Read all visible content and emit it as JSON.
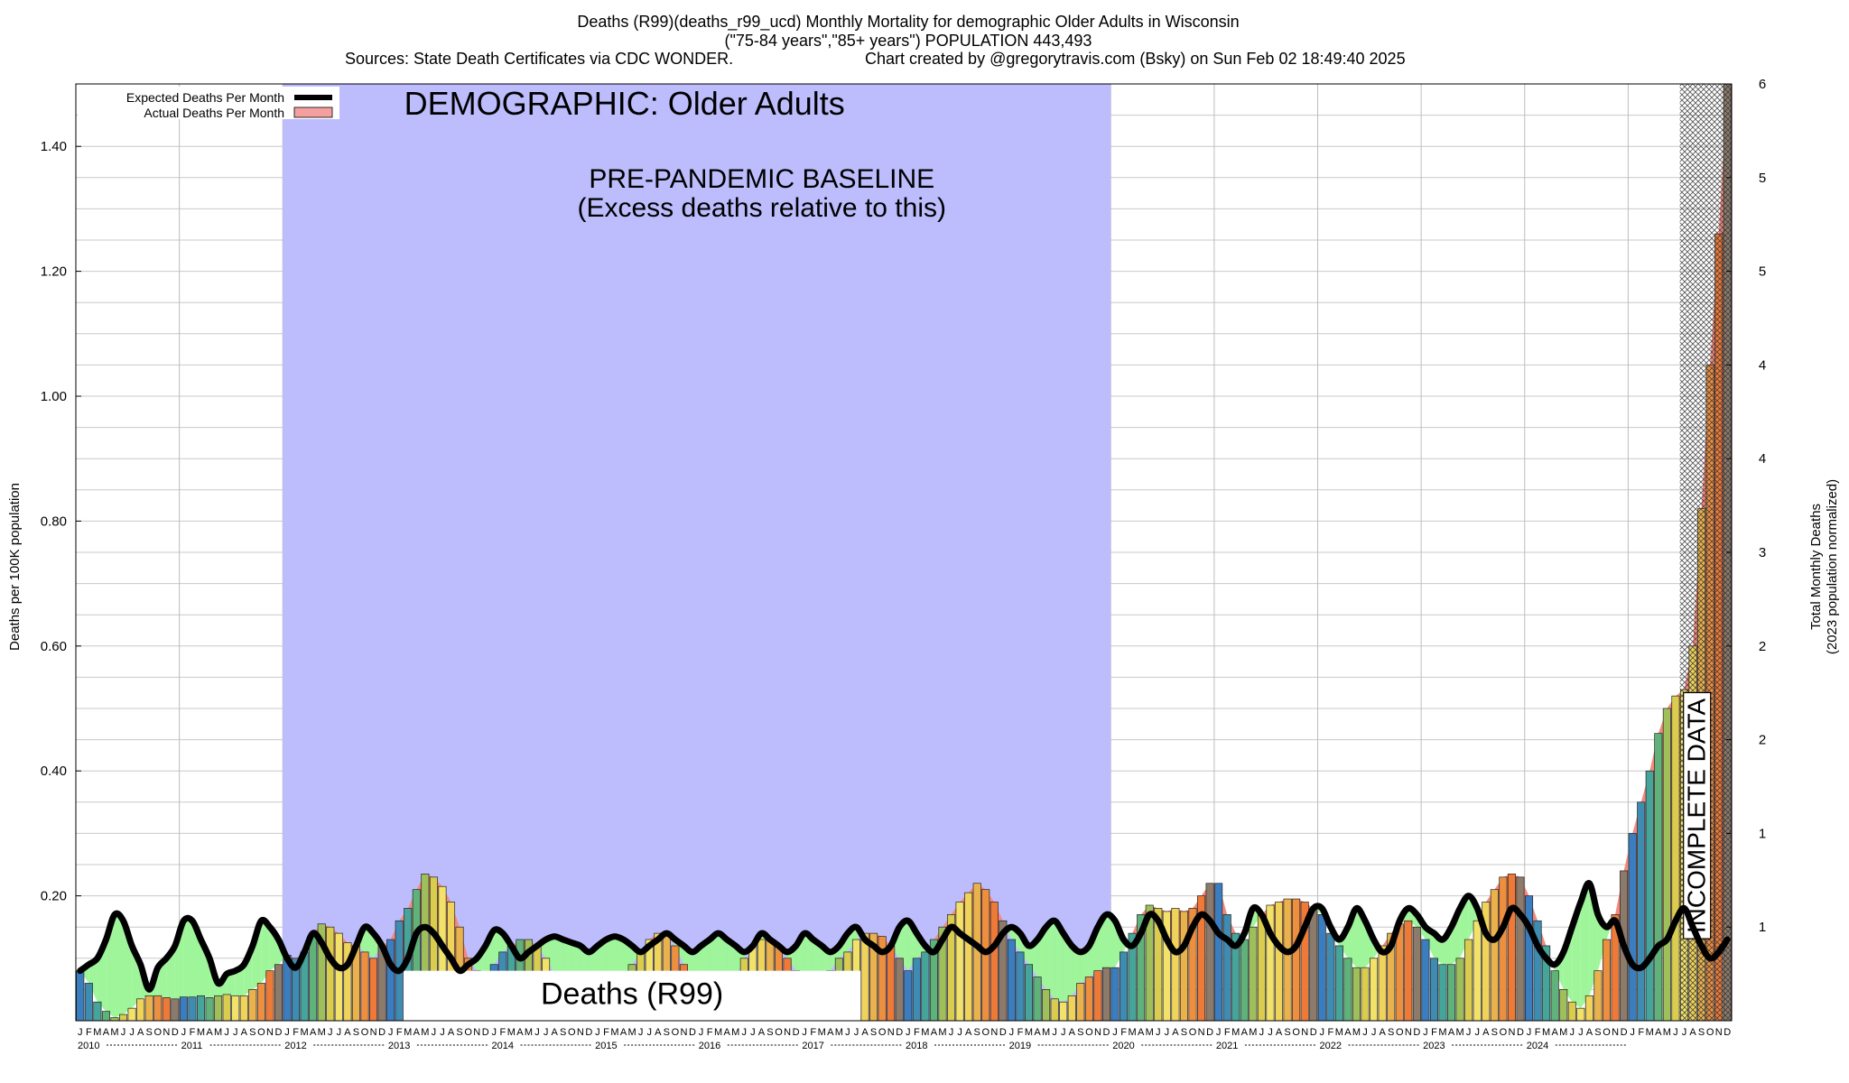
{
  "chart_data": {
    "type": "bar",
    "title": "Deaths (R99)(deaths_r99_ucd) Monthly Mortality for demographic Older Adults in Wisconsin",
    "subtitle": "(\"75-84 years\",\"85+ years\") POPULATION 443,493",
    "source": "Sources: State Death Certificates via CDC WONDER.",
    "credit": "Chart created by @gregorytravis.com (Bsky) on Sun Feb 02 18:49:40 2025",
    "ylabel": "Deaths per 100K population",
    "y2label_line1": "Total Monthly Deaths",
    "y2label_line2": "(2023 population normalized)",
    "ylim": [
      0,
      1.5
    ],
    "yticks": [
      "0.20",
      "0.40",
      "0.60",
      "0.80",
      "1.00",
      "1.20",
      "1.40"
    ],
    "ytick_values": [
      0.2,
      0.4,
      0.6,
      0.8,
      1.0,
      1.2,
      1.4
    ],
    "y2ticks": [
      "1",
      "1",
      "2",
      "2",
      "3",
      "4",
      "4",
      "5",
      "5",
      "6"
    ],
    "y2tick_values": [
      0.15,
      0.3,
      0.45,
      0.6,
      0.75,
      0.9,
      1.05,
      1.2,
      1.35,
      1.5
    ],
    "legend_position": "top-left",
    "legend": [
      "Expected Deaths Per Month",
      "Actual Deaths Per Month"
    ],
    "legend_colors": [
      "#000000",
      "#f4a0a0"
    ],
    "baseline_label": "DEMOGRAPHIC: Older Adults",
    "baseline_note_1": "PRE-PANDEMIC BASELINE",
    "baseline_note_2": "(Excess deaths relative to this)",
    "baseline_period": [
      "2012-01",
      "2019-12"
    ],
    "cause_label": "Deaths (R99)",
    "incomplete_label": "INCOMPLETE DATA",
    "incomplete_period": [
      "2024-07",
      "2024-12"
    ],
    "month_letters": [
      "J",
      "F",
      "M",
      "A",
      "M",
      "J",
      "J",
      "A",
      "S",
      "O",
      "N",
      "D"
    ],
    "years": [
      "2010",
      "2011",
      "2012",
      "2013",
      "2014",
      "2015",
      "2016",
      "2017",
      "2018",
      "2019",
      "2020",
      "2021",
      "2022",
      "2023",
      "2024"
    ],
    "actual": [
      0.08,
      0.06,
      0.03,
      0.015,
      0.005,
      0.01,
      0.02,
      0.035,
      0.04,
      0.04,
      0.037,
      0.035,
      0.038,
      0.038,
      0.04,
      0.037,
      0.04,
      0.042,
      0.04,
      0.04,
      0.05,
      0.06,
      0.08,
      0.09,
      0.105,
      0.1,
      0.11,
      0.14,
      0.155,
      0.15,
      0.14,
      0.125,
      0.12,
      0.11,
      0.1,
      0.12,
      0.13,
      0.16,
      0.18,
      0.21,
      0.235,
      0.23,
      0.215,
      0.19,
      0.15,
      0.1,
      0.08,
      0.07,
      0.09,
      0.11,
      0.12,
      0.13,
      0.13,
      0.12,
      0.1,
      0.075,
      0.05,
      0.03,
      0.02,
      0.02,
      0.02,
      0.025,
      0.035,
      0.06,
      0.09,
      0.11,
      0.13,
      0.14,
      0.14,
      0.12,
      0.09,
      0.06,
      0.03,
      0.03,
      0.035,
      0.05,
      0.07,
      0.1,
      0.12,
      0.13,
      0.13,
      0.12,
      0.1,
      0.08,
      0.045,
      0.045,
      0.05,
      0.08,
      0.1,
      0.11,
      0.13,
      0.14,
      0.14,
      0.135,
      0.12,
      0.1,
      0.08,
      0.1,
      0.11,
      0.13,
      0.15,
      0.17,
      0.19,
      0.205,
      0.22,
      0.21,
      0.19,
      0.16,
      0.13,
      0.11,
      0.09,
      0.07,
      0.05,
      0.035,
      0.03,
      0.04,
      0.06,
      0.07,
      0.08,
      0.085,
      0.085,
      0.11,
      0.14,
      0.17,
      0.185,
      0.18,
      0.175,
      0.18,
      0.175,
      0.18,
      0.2,
      0.22,
      0.22,
      0.17,
      0.14,
      0.13,
      0.15,
      0.17,
      0.185,
      0.19,
      0.195,
      0.195,
      0.19,
      0.18,
      0.17,
      0.14,
      0.12,
      0.1,
      0.085,
      0.085,
      0.1,
      0.12,
      0.14,
      0.155,
      0.16,
      0.15,
      0.13,
      0.1,
      0.09,
      0.09,
      0.1,
      0.13,
      0.16,
      0.19,
      0.21,
      0.23,
      0.235,
      0.23,
      0.2,
      0.16,
      0.12,
      0.08,
      0.05,
      0.03,
      0.02,
      0.04,
      0.08,
      0.13,
      0.17,
      0.24,
      0.3,
      0.35,
      0.4,
      0.46,
      0.5,
      0.52,
      0.53,
      0.6,
      0.82,
      1.05,
      1.26,
      1.5
    ],
    "expected": [
      0.08,
      0.09,
      0.1,
      0.13,
      0.17,
      0.16,
      0.12,
      0.09,
      0.05,
      0.085,
      0.1,
      0.12,
      0.16,
      0.16,
      0.13,
      0.1,
      0.06,
      0.075,
      0.08,
      0.09,
      0.12,
      0.16,
      0.15,
      0.13,
      0.1,
      0.085,
      0.11,
      0.14,
      0.125,
      0.1,
      0.085,
      0.09,
      0.12,
      0.15,
      0.14,
      0.12,
      0.09,
      0.08,
      0.1,
      0.14,
      0.15,
      0.14,
      0.12,
      0.1,
      0.08,
      0.09,
      0.1,
      0.12,
      0.145,
      0.14,
      0.12,
      0.1,
      0.11,
      0.12,
      0.13,
      0.135,
      0.13,
      0.125,
      0.12,
      0.11,
      0.12,
      0.13,
      0.135,
      0.13,
      0.12,
      0.11,
      0.12,
      0.13,
      0.14,
      0.13,
      0.12,
      0.11,
      0.12,
      0.13,
      0.14,
      0.13,
      0.12,
      0.11,
      0.12,
      0.14,
      0.13,
      0.12,
      0.11,
      0.12,
      0.14,
      0.13,
      0.12,
      0.11,
      0.12,
      0.14,
      0.15,
      0.13,
      0.12,
      0.11,
      0.12,
      0.15,
      0.16,
      0.14,
      0.12,
      0.11,
      0.13,
      0.15,
      0.14,
      0.13,
      0.12,
      0.11,
      0.12,
      0.14,
      0.15,
      0.14,
      0.12,
      0.13,
      0.15,
      0.16,
      0.14,
      0.12,
      0.11,
      0.12,
      0.15,
      0.17,
      0.16,
      0.13,
      0.12,
      0.14,
      0.17,
      0.16,
      0.13,
      0.11,
      0.12,
      0.15,
      0.17,
      0.16,
      0.14,
      0.13,
      0.12,
      0.14,
      0.18,
      0.17,
      0.14,
      0.12,
      0.11,
      0.12,
      0.15,
      0.18,
      0.18,
      0.15,
      0.13,
      0.15,
      0.18,
      0.16,
      0.13,
      0.11,
      0.12,
      0.16,
      0.18,
      0.17,
      0.15,
      0.14,
      0.13,
      0.15,
      0.18,
      0.2,
      0.18,
      0.14,
      0.13,
      0.15,
      0.18,
      0.17,
      0.15,
      0.12,
      0.1,
      0.09,
      0.11,
      0.15,
      0.19,
      0.22,
      0.17,
      0.15,
      0.16,
      0.12,
      0.09,
      0.085,
      0.1,
      0.12,
      0.13,
      0.16,
      0.18,
      0.15,
      0.12,
      0.1,
      0.11,
      0.13
    ]
  }
}
